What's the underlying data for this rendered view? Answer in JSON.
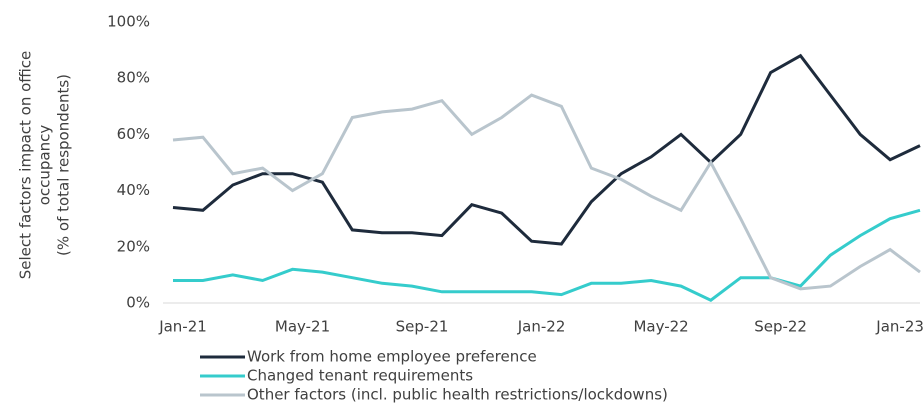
{
  "chart_data": {
    "type": "line",
    "y_label": [
      "Select factors impact on office",
      "occupancy",
      "(% of total respondents)"
    ],
    "categories": [
      "Jan-21",
      null,
      null,
      null,
      "May-21",
      null,
      null,
      null,
      "Sep-21",
      null,
      null,
      null,
      "Jan-22",
      null,
      null,
      null,
      "May-22",
      null,
      null,
      null,
      "Sep-22",
      null,
      null,
      null,
      "Jan-23",
      null
    ],
    "series": [
      {
        "name": "Work from home employee preference",
        "color": "#1e2b3c",
        "values": [
          34,
          33,
          42,
          46,
          46,
          43,
          26,
          25,
          25,
          24,
          35,
          32,
          22,
          21,
          36,
          46,
          52,
          60,
          50,
          60,
          82,
          88,
          74,
          60,
          51,
          56
        ]
      },
      {
        "name": "Changed tenant requirements",
        "color": "#35cccc",
        "values": [
          8,
          8,
          10,
          8,
          12,
          11,
          9,
          7,
          6,
          4,
          4,
          4,
          4,
          3,
          7,
          7,
          8,
          6,
          1,
          9,
          9,
          6,
          17,
          24,
          30,
          33
        ]
      },
      {
        "name": "Other factors (incl. public health restrictions/lockdowns)",
        "color": "#b9c5cd",
        "values": [
          58,
          59,
          46,
          48,
          40,
          46,
          66,
          68,
          69,
          72,
          60,
          66,
          74,
          70,
          48,
          44,
          38,
          33,
          50,
          30,
          9,
          5,
          6,
          13,
          19,
          11
        ]
      }
    ],
    "ylim": [
      0,
      100
    ],
    "yticks": [
      {
        "value": 0,
        "label": "0%"
      },
      {
        "value": 20,
        "label": "20%"
      },
      {
        "value": 40,
        "label": "40%"
      },
      {
        "value": 60,
        "label": "60%"
      },
      {
        "value": 80,
        "label": "80%"
      },
      {
        "value": 100,
        "label": "100%"
      }
    ],
    "legend": "bottom"
  }
}
